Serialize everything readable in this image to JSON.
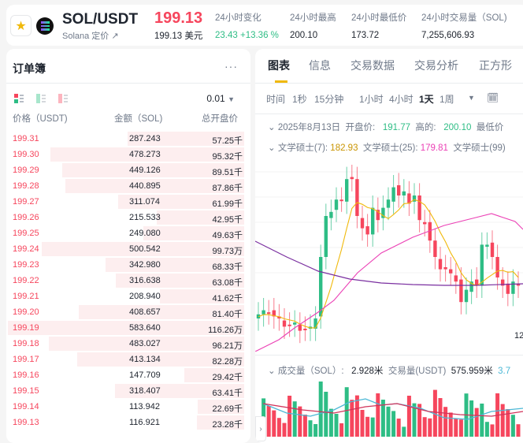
{
  "header": {
    "pair": "SOL/USDT",
    "subtitle": "Solana 定价",
    "price": "199.13",
    "price_usd": "199.13 美元",
    "stats": [
      {
        "label": "24小时变化",
        "value": "23.43 +13.36 %",
        "color": "#2ebd85"
      },
      {
        "label": "24小时最高",
        "value": "200.10"
      },
      {
        "label": "24小时最低价",
        "value": "173.72"
      },
      {
        "label": "24小时交易量（SOL)",
        "value": "7,255,606.93"
      }
    ]
  },
  "orderbook": {
    "title": "订单簿",
    "tick": "0.01",
    "col_price": "价格（USDT)",
    "col_amount": "金额（SOL)",
    "col_total": "总开盘价",
    "rows": [
      [
        "199.31",
        "287.243",
        "57.25千"
      ],
      [
        "199.30",
        "478.273",
        "95.32千"
      ],
      [
        "199.29",
        "449.126",
        "89.51千"
      ],
      [
        "199.28",
        "440.895",
        "87.86千"
      ],
      [
        "199.27",
        "311.074",
        "61.99千"
      ],
      [
        "199.26",
        "215.533",
        "42.95千"
      ],
      [
        "199.25",
        "249.080",
        "49.63千"
      ],
      [
        "199.24",
        "500.542",
        "99.73万"
      ],
      [
        "199.23",
        "342.980",
        "68.33千"
      ],
      [
        "199.22",
        "316.638",
        "63.08千"
      ],
      [
        "199.21",
        "208.940",
        "41.62千"
      ],
      [
        "199.20",
        "408.657",
        "81.40千"
      ],
      [
        "199.19",
        "583.640",
        "116.26万"
      ],
      [
        "199.18",
        "483.027",
        "96.21万"
      ],
      [
        "199.17",
        "413.134",
        "82.28万"
      ],
      [
        "199.16",
        "147.709",
        "29.42千"
      ],
      [
        "199.15",
        "318.407",
        "63.41千"
      ],
      [
        "199.14",
        "113.942",
        "22.69千"
      ],
      [
        "199.13",
        "116.921",
        "23.28千"
      ]
    ]
  },
  "chart": {
    "tabs": [
      "图表",
      "信息",
      "交易数据",
      "交易分析",
      "正方形"
    ],
    "intervals": [
      "时间",
      "1秒",
      "15分钟",
      "1小时",
      "4小时",
      "1天",
      "1周"
    ],
    "active_interval": "1天",
    "ohlc": {
      "date": "2025年8月13日",
      "open_label": "开盘价:",
      "open": "191.77",
      "high_label": "高的:",
      "high": "200.10",
      "low_label": "最低价"
    },
    "ma": [
      {
        "label": "文学硕士(7):",
        "value": "182.93",
        "color": "#f0b90b"
      },
      {
        "label": "文学硕士(25):",
        "value": "179.81",
        "color": "#eb40b5"
      },
      {
        "label": "文学硕士(99)",
        "value": "",
        "color": "#7a2fa0"
      }
    ],
    "axis_label": "12",
    "volume": {
      "label": "成交量（SOL）:",
      "value": "2.928米",
      "usdt_label": "交易量(USDT)",
      "usdt_value": "575.959米",
      "extra": "3.7"
    },
    "colors": {
      "up": "#2ebd85",
      "down": "#f6465d"
    }
  }
}
